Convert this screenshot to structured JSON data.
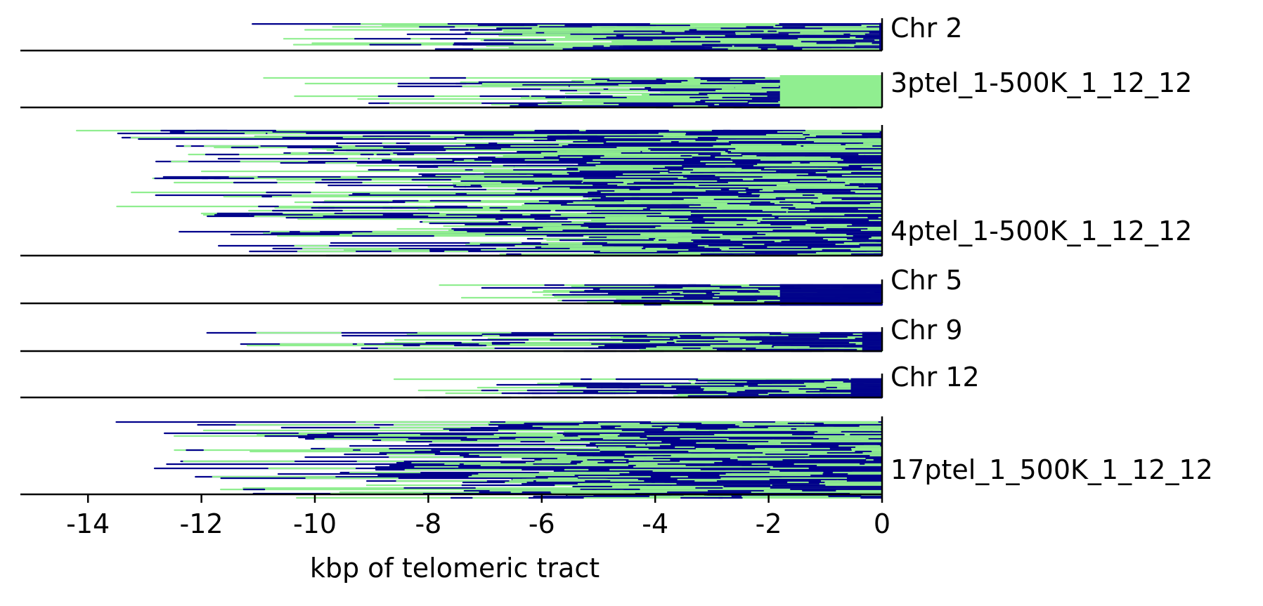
{
  "chart_data": {
    "type": "bar",
    "description_kind": "stacked telomeric read tracks per chromosome arm",
    "xlabel": "kbp of telomeric tract",
    "xlim": [
      -15.3,
      0
    ],
    "xticks": [
      -14,
      -12,
      -10,
      -8,
      -6,
      -4,
      -2,
      0
    ],
    "xtick_labels": [
      "-14",
      "-12",
      "-10",
      "-8",
      "-6",
      "-4",
      "-2",
      "0"
    ],
    "colors": {
      "primary_motif": "#90ee90",
      "other_motif": "#00008b",
      "axis": "#000000"
    },
    "tracks": [
      {
        "label": "Chr 2",
        "reads": 18,
        "min_kbp": -11.1,
        "dominant": "mixed",
        "canonical_start": -0.05
      },
      {
        "label": "3ptel_1-500K_1_12_12",
        "reads": 22,
        "min_kbp": -10.9,
        "dominant": "green",
        "canonical_start": 0
      },
      {
        "label": "4ptel_1-500K_1_12_12",
        "reads": 90,
        "min_kbp": -14.2,
        "dominant": "mixed",
        "canonical_start": 0
      },
      {
        "label": "Chr 5",
        "reads": 15,
        "min_kbp": -7.8,
        "dominant": "green",
        "canonical_start": -1.8
      },
      {
        "label": "Chr 9",
        "reads": 14,
        "min_kbp": -11.9,
        "dominant": "green",
        "canonical_start": -0.35
      },
      {
        "label": "Chr 12",
        "reads": 14,
        "min_kbp": -8.6,
        "dominant": "green",
        "canonical_start": -0.55
      },
      {
        "label": "17ptel_1_500K_1_12_12",
        "reads": 55,
        "min_kbp": -13.5,
        "dominant": "blue",
        "canonical_start": 0
      }
    ]
  }
}
